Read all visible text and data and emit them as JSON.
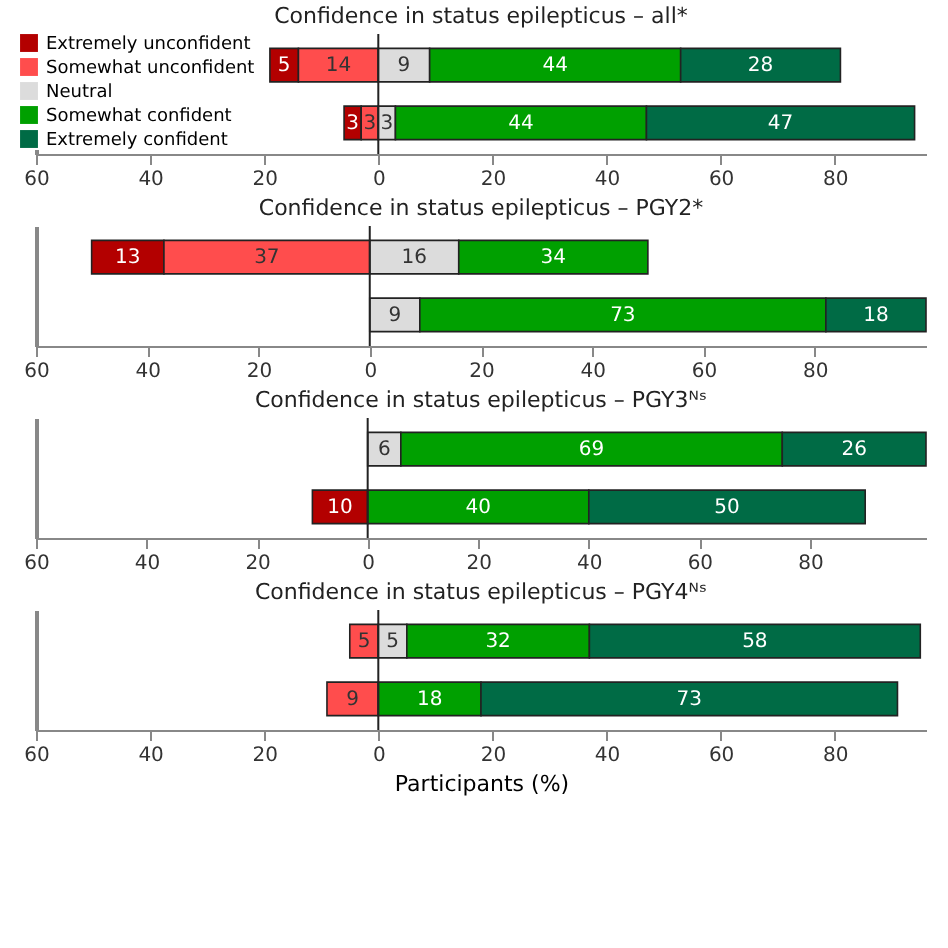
{
  "chart_data": [
    {
      "type": "bar",
      "orientation": "horizontal",
      "title": "Confidence in status epilepticus – all*",
      "categories": [
        null,
        null
      ],
      "series": [
        {
          "name": "Extremely unconfident",
          "color": "#b30000",
          "values": [
            5,
            3
          ],
          "base": [
            -19,
            -6
          ]
        },
        {
          "name": "Somewhat unconfident",
          "color": "#ff4d4d",
          "values": [
            14,
            3
          ],
          "base": [
            -14,
            -3
          ]
        },
        {
          "name": "Neutral",
          "color": "#dcdcdc",
          "values": [
            9,
            3
          ],
          "base": [
            0,
            0
          ]
        },
        {
          "name": "Somewhat confident",
          "color": "#00a000",
          "values": [
            44,
            44
          ],
          "base": [
            9,
            3
          ]
        },
        {
          "name": "Extremely confident",
          "color": "#006b45",
          "values": [
            28,
            47
          ],
          "base": [
            53,
            47
          ]
        }
      ],
      "data_labels": true,
      "xlim": [
        -60,
        96
      ],
      "xticks": [
        {
          "value": -60,
          "label": "60"
        },
        {
          "value": -40,
          "label": "40"
        },
        {
          "value": -20,
          "label": "20"
        },
        0,
        20,
        40,
        60,
        80
      ],
      "ref_lines": [
        {
          "axis": "x",
          "value": 0
        }
      ],
      "legend": "top left",
      "tick_labels": "x",
      "grid": false
    },
    {
      "type": "bar",
      "orientation": "horizontal",
      "title": "Confidence in status epilepticus – PGY2*",
      "categories": [
        null,
        null
      ],
      "series": [
        {
          "color": "#b30000",
          "values": [
            13,
            null
          ],
          "base": [
            -50,
            null
          ]
        },
        {
          "color": "#ff4d4d",
          "values": [
            37,
            null
          ],
          "base": [
            -37,
            null
          ]
        },
        {
          "color": "#dcdcdc",
          "values": [
            16,
            9
          ],
          "base": [
            0,
            0
          ]
        },
        {
          "color": "#00a000",
          "values": [
            34,
            73
          ],
          "base": [
            16,
            9
          ]
        },
        {
          "color": "#006b45",
          "values": [
            null,
            18
          ],
          "base": [
            null,
            82
          ]
        }
      ],
      "data_labels": true,
      "xlim": [
        -60,
        100
      ],
      "xticks": [
        {
          "value": -60,
          "label": "60"
        },
        {
          "value": -40,
          "label": "40"
        },
        {
          "value": -20,
          "label": "20"
        },
        0,
        20,
        40,
        60,
        80
      ],
      "ref_lines": [
        {
          "axis": "x",
          "value": 0
        }
      ],
      "tick_labels": "x",
      "grid": false
    },
    {
      "type": "bar",
      "orientation": "horizontal",
      "title": "Confidence in status epilepticus – PGY3ᴺˢ",
      "categories": [
        null,
        null
      ],
      "series": [
        {
          "color": "#b30000",
          "values": [
            null,
            10
          ],
          "base": [
            null,
            -10
          ]
        },
        {
          "color": "#ff4d4d",
          "values": [
            null,
            null
          ],
          "base": [
            null,
            null
          ]
        },
        {
          "color": "#dcdcdc",
          "values": [
            6,
            null
          ],
          "base": [
            0,
            null
          ]
        },
        {
          "color": "#00a000",
          "values": [
            69,
            40
          ],
          "base": [
            6,
            0
          ]
        },
        {
          "color": "#006b45",
          "values": [
            26,
            50
          ],
          "base": [
            75,
            40
          ]
        }
      ],
      "data_labels": true,
      "xlim": [
        -60,
        101
      ],
      "xticks": [
        {
          "value": -60,
          "label": "60"
        },
        {
          "value": -40,
          "label": "40"
        },
        {
          "value": -20,
          "label": "20"
        },
        0,
        20,
        40,
        60,
        80
      ],
      "ref_lines": [
        {
          "axis": "x",
          "value": 0
        }
      ],
      "tick_labels": "x",
      "grid": false
    },
    {
      "type": "bar",
      "orientation": "horizontal",
      "title": "Confidence in status epilepticus – PGY4ᴺˢ",
      "categories": [
        null,
        null
      ],
      "series": [
        {
          "color": "#b30000",
          "values": [
            null,
            null
          ],
          "base": [
            null,
            null
          ]
        },
        {
          "color": "#ff4d4d",
          "values": [
            5,
            9
          ],
          "base": [
            -5,
            -9
          ]
        },
        {
          "color": "#dcdcdc",
          "values": [
            5,
            null
          ],
          "base": [
            0,
            null
          ]
        },
        {
          "color": "#00a000",
          "values": [
            32,
            18
          ],
          "base": [
            5,
            0
          ]
        },
        {
          "color": "#006b45",
          "values": [
            58,
            73
          ],
          "base": [
            37,
            18
          ]
        }
      ],
      "data_labels": true,
      "xlim": [
        -60,
        96
      ],
      "xticks": [
        {
          "value": -60,
          "label": "60"
        },
        {
          "value": -40,
          "label": "40"
        },
        {
          "value": -20,
          "label": "20"
        },
        0,
        20,
        40,
        60,
        80
      ],
      "xlabel": "Participants (%)",
      "ref_lines": [
        {
          "axis": "x",
          "value": 0
        }
      ],
      "tick_labels": "x",
      "grid": false
    }
  ]
}
